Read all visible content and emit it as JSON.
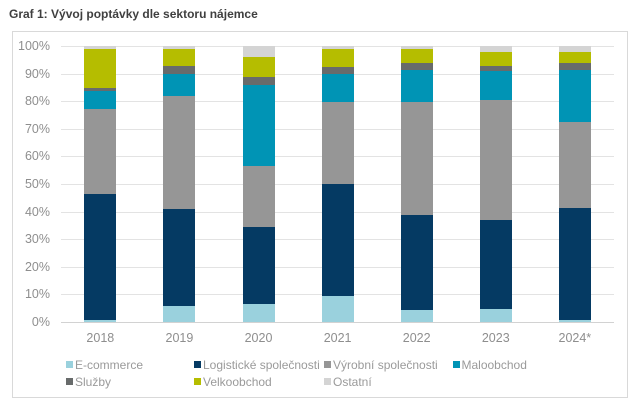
{
  "title": "Graf 1: Vývoj poptávky dle sektoru nájemce",
  "chart_data": {
    "type": "bar",
    "variant": "stacked-100-percent",
    "title": "Graf 1: Vývoj poptávky dle sektoru nájemce",
    "categories": [
      "2018",
      "2019",
      "2020",
      "2021",
      "2022",
      "2023",
      "2024*"
    ],
    "series": [
      {
        "name": "E-commerce",
        "color": "#9ad1dd",
        "values": [
          0.7,
          6,
          6.5,
          9.5,
          4.5,
          5,
          0.7
        ]
      },
      {
        "name": "Logistické společnosti",
        "color": "#053a63",
        "values": [
          45.8,
          35,
          28,
          40.5,
          34.5,
          32,
          40.8
        ]
      },
      {
        "name": "Výrobní společnosti",
        "color": "#969696",
        "values": [
          31,
          41,
          22,
          30,
          41,
          43.5,
          31
        ]
      },
      {
        "name": "Maloobchod",
        "color": "#0094b5",
        "values": [
          6.5,
          8,
          29.5,
          10,
          11.5,
          10.5,
          19
        ]
      },
      {
        "name": "Služby",
        "color": "#686b6b",
        "values": [
          1,
          3,
          3,
          2.5,
          2.5,
          2,
          2.5
        ]
      },
      {
        "name": "Velkoobchod",
        "color": "#b5bd00",
        "values": [
          14,
          6,
          7,
          6.5,
          5,
          5,
          4
        ]
      },
      {
        "name": "Ostatní",
        "color": "#d4d4d4",
        "values": [
          1,
          1,
          4,
          1,
          1,
          2,
          2
        ]
      }
    ],
    "xlabel": "",
    "ylabel": "",
    "ylim": [
      0,
      100
    ],
    "y_ticks": [
      "0%",
      "10%",
      "20%",
      "30%",
      "40%",
      "50%",
      "60%",
      "70%",
      "80%",
      "90%",
      "100%"
    ],
    "grid": true,
    "legend_position": "bottom",
    "legend_rows": [
      [
        "E-commerce",
        "Logistické společnosti",
        "Výrobní společnosti",
        "Maloobchod"
      ],
      [
        "Služby",
        "Velkoobchod",
        "Ostatní"
      ]
    ]
  }
}
